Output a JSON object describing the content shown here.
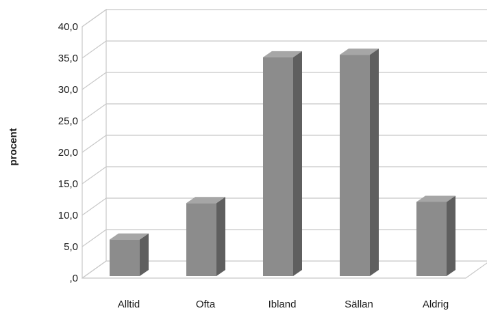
{
  "chart_data": {
    "type": "bar",
    "title": "",
    "xlabel": "",
    "ylabel": "procent",
    "categories": [
      "Alltid",
      "Ofta",
      "Ibland",
      "Sällan",
      "Aldrig"
    ],
    "values": [
      5.8,
      11.6,
      34.8,
      35.2,
      11.8
    ],
    "ylim": [
      0,
      40
    ],
    "yticks": [
      ",0",
      "5,0",
      "10,0",
      "15,0",
      "20,0",
      "25,0",
      "30,0",
      "35,0",
      "40,0"
    ],
    "grid": true,
    "legend": "none",
    "style": "3d-column",
    "colors": {
      "bar_front": "#8c8c8c",
      "bar_side": "#5f5f5f",
      "bar_top": "#a6a6a6",
      "gridline": "#c8c8c8"
    }
  }
}
